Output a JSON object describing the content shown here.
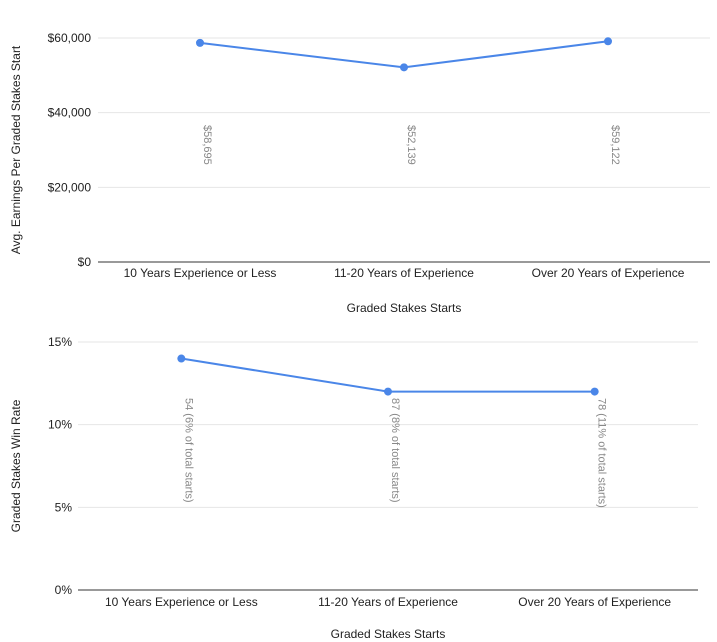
{
  "chart_data": [
    {
      "type": "line",
      "title": "",
      "categories": [
        "10 Years Experience or Less",
        "11-20 Years of Experience",
        "Over 20 Years of Experience"
      ],
      "series": [
        {
          "name": "",
          "values": [
            58695,
            52139,
            59122
          ],
          "color": "#4a86e8"
        }
      ],
      "data_labels": [
        "$58,695",
        "$52,139",
        "$59,122"
      ],
      "xlabel": "Graded Stakes Starts",
      "ylabel": "Avg. Earnings Per Graded Stakes Start",
      "ylim": [
        0,
        60000
      ],
      "yticks": [
        0,
        20000,
        40000,
        60000
      ],
      "ytick_labels": [
        "$0",
        "$20,000",
        "$40,000",
        "$60,000"
      ],
      "grid": true,
      "legend": "none"
    },
    {
      "type": "line",
      "title": "",
      "categories": [
        "10 Years Experience or Less",
        "11-20 Years of Experience",
        "Over 20 Years of Experience"
      ],
      "series": [
        {
          "name": "",
          "values": [
            0.14,
            0.12,
            0.12
          ],
          "color": "#4a86e8"
        }
      ],
      "data_labels": [
        "54 (6% of total starts)",
        "87 (8% of total starts)",
        "78 (11% of total starts)"
      ],
      "xlabel": "Graded Stakes Starts",
      "ylabel": "Graded Stakes Win Rate",
      "ylim": [
        0,
        0.15
      ],
      "yticks": [
        0,
        0.05,
        0.1,
        0.15
      ],
      "ytick_labels": [
        "0%",
        "5%",
        "10%",
        "15%"
      ],
      "grid": true,
      "legend": "none"
    }
  ]
}
